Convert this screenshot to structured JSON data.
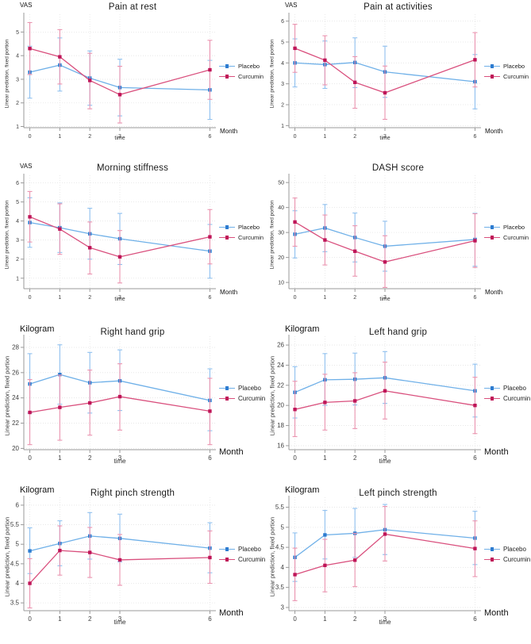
{
  "page": {
    "background": "#ffffff"
  },
  "colors": {
    "placebo_line": "#6fb0e8",
    "placebo_marker": "#2e7cd0",
    "placebo_err": "#8fc0ef",
    "curcumin_line": "#d94f7d",
    "curcumin_marker": "#bf1558",
    "curcumin_err": "#ea93af",
    "grid": "#e4e4e4",
    "axis": "#9a9a9a",
    "tick_text": "#404040"
  },
  "legend": {
    "placebo": "Placebo",
    "curcumin": "Curcumin"
  },
  "shared": {
    "ylabel": "Linear prediction, fixed portion",
    "xlabel": "time",
    "month_label": "Month"
  },
  "chart_data": [
    {
      "type": "line",
      "title": "Pain at rest",
      "unit": "VAS",
      "xlabel": "time",
      "ylabel": "Linear prediction, fixed portion",
      "x": [
        0,
        1,
        2,
        3,
        6
      ],
      "xlim": [
        -0.2,
        6.2
      ],
      "ylim": [
        0.95,
        5.55
      ],
      "yticks": [
        1,
        2,
        3,
        4,
        5
      ],
      "series": [
        {
          "name": "Placebo",
          "values": [
            3.3,
            3.6,
            3.05,
            2.65,
            2.55
          ],
          "ci_low": [
            2.2,
            2.5,
            1.9,
            1.45,
            1.3
          ],
          "ci_high": [
            4.4,
            4.75,
            4.2,
            3.85,
            3.8
          ]
        },
        {
          "name": "Curcumin",
          "values": [
            4.3,
            3.95,
            2.95,
            2.35,
            3.4
          ],
          "ci_low": [
            3.2,
            2.8,
            1.75,
            1.15,
            2.15
          ],
          "ci_high": [
            5.4,
            5.1,
            4.1,
            3.55,
            4.65
          ]
        }
      ]
    },
    {
      "type": "line",
      "title": "Pain at activities",
      "unit": "VAS",
      "xlabel": "time",
      "ylabel": "Linear prediction, fixed portion",
      "x": [
        0,
        1,
        2,
        3,
        6
      ],
      "xlim": [
        -0.2,
        6.2
      ],
      "ylim": [
        0.9,
        6.1
      ],
      "yticks": [
        1,
        2,
        3,
        4,
        5,
        6
      ],
      "series": [
        {
          "name": "Placebo",
          "values": [
            4.0,
            3.92,
            4.02,
            3.57,
            3.1
          ],
          "ci_low": [
            2.85,
            2.78,
            2.82,
            2.35,
            1.8
          ],
          "ci_high": [
            5.15,
            5.05,
            5.2,
            4.8,
            4.4
          ]
        },
        {
          "name": "Curcumin",
          "values": [
            4.7,
            4.13,
            3.07,
            2.57,
            4.15
          ],
          "ci_low": [
            3.55,
            2.95,
            1.83,
            1.3,
            2.85
          ],
          "ci_high": [
            5.85,
            5.3,
            4.3,
            3.85,
            5.45
          ]
        }
      ]
    },
    {
      "type": "line",
      "title": "Morning stiffness",
      "unit": "VAS",
      "xlabel": "time",
      "ylabel": "Linear prediction, fixed portion",
      "x": [
        0,
        1,
        2,
        3,
        6
      ],
      "xlim": [
        -0.2,
        6.2
      ],
      "ylim": [
        0.45,
        6.15
      ],
      "yticks": [
        1,
        2,
        3,
        4,
        5,
        6
      ],
      "series": [
        {
          "name": "Placebo",
          "values": [
            3.92,
            3.65,
            3.33,
            3.07,
            2.42
          ],
          "ci_low": [
            2.62,
            2.35,
            2.0,
            1.72,
            1.0
          ],
          "ci_high": [
            5.22,
            4.95,
            4.67,
            4.4,
            3.82
          ]
        },
        {
          "name": "Curcumin",
          "values": [
            4.22,
            3.58,
            2.6,
            2.12,
            3.17
          ],
          "ci_low": [
            2.9,
            2.25,
            1.22,
            0.75,
            1.75
          ],
          "ci_high": [
            5.55,
            4.9,
            3.95,
            3.5,
            4.6
          ]
        }
      ]
    },
    {
      "type": "line",
      "title": "DASH score",
      "unit": "",
      "xlabel": "time",
      "ylabel": "Linear prediction, fixed portion",
      "x": [
        0,
        1,
        2,
        3,
        6
      ],
      "xlim": [
        -0.2,
        6.2
      ],
      "ylim": [
        7.5,
        51
      ],
      "yticks": [
        10,
        20,
        30,
        40,
        50
      ],
      "series": [
        {
          "name": "Placebo",
          "values": [
            29.3,
            31.8,
            28,
            24.5,
            27.2
          ],
          "ci_low": [
            19.8,
            22.3,
            18.2,
            14.5,
            16.5
          ],
          "ci_high": [
            38.7,
            41.2,
            37.8,
            34.5,
            37.7
          ]
        },
        {
          "name": "Curcumin",
          "values": [
            34.2,
            27,
            22.5,
            18.2,
            26.7
          ],
          "ci_low": [
            24.5,
            17,
            12.5,
            8,
            16
          ],
          "ci_high": [
            43.8,
            37,
            32.7,
            28.7,
            37.5
          ]
        }
      ]
    },
    {
      "type": "line",
      "title": "Right hand grip",
      "unit": "Kilogram",
      "xlabel": "time",
      "ylabel": "Linear prediction, fixed portion",
      "x": [
        0,
        1,
        2,
        3,
        6
      ],
      "xlim": [
        -0.2,
        6.2
      ],
      "ylim": [
        19.9,
        28.5
      ],
      "yticks": [
        20,
        22,
        24,
        26,
        28
      ],
      "series": [
        {
          "name": "Placebo",
          "values": [
            25.1,
            25.85,
            25.2,
            25.35,
            23.8
          ],
          "ci_low": [
            22.8,
            23.5,
            22.8,
            23.0,
            21.4
          ],
          "ci_high": [
            27.5,
            28.2,
            27.6,
            27.8,
            26.3
          ]
        },
        {
          "name": "Curcumin",
          "values": [
            22.85,
            23.25,
            23.6,
            24.1,
            22.95
          ],
          "ci_low": [
            20.3,
            20.65,
            21.05,
            21.45,
            20.3
          ],
          "ci_high": [
            25.45,
            25.8,
            26.2,
            26.7,
            25.55
          ]
        }
      ]
    },
    {
      "type": "line",
      "title": "Left hand grip",
      "unit": "Kilogram",
      "xlabel": "time",
      "ylabel": "Linear prediction, fixed portion",
      "x": [
        0,
        1,
        2,
        3,
        6
      ],
      "xlim": [
        -0.2,
        6.2
      ],
      "ylim": [
        15.6,
        26.4
      ],
      "yticks": [
        16,
        18,
        20,
        22,
        24,
        26
      ],
      "series": [
        {
          "name": "Placebo",
          "values": [
            21.3,
            22.55,
            22.6,
            22.75,
            21.45
          ],
          "ci_low": [
            18.75,
            20.0,
            20.05,
            20.2,
            18.85
          ],
          "ci_high": [
            23.85,
            25.15,
            25.2,
            25.35,
            24.1
          ]
        },
        {
          "name": "Curcumin",
          "values": [
            19.6,
            20.3,
            20.45,
            21.45,
            20.0
          ],
          "ci_low": [
            16.9,
            17.55,
            17.7,
            18.65,
            17.2
          ],
          "ci_high": [
            22.4,
            23.1,
            23.25,
            24.3,
            22.8
          ]
        }
      ]
    },
    {
      "type": "line",
      "title": "Right pinch strength",
      "unit": "Kilogram",
      "xlabel": "time",
      "ylabel": "Linear prediction, fixed portion",
      "x": [
        0,
        1,
        2,
        3,
        6
      ],
      "xlim": [
        -0.2,
        6.2
      ],
      "ylim": [
        3.3,
        6.08
      ],
      "yticks": [
        3.5,
        4,
        4.5,
        5,
        5.5,
        6
      ],
      "series": [
        {
          "name": "Placebo",
          "values": [
            4.83,
            5.02,
            5.21,
            5.15,
            4.9
          ],
          "ci_low": [
            4.25,
            4.45,
            4.62,
            4.55,
            4.27
          ],
          "ci_high": [
            5.42,
            5.6,
            5.81,
            5.77,
            5.55
          ]
        },
        {
          "name": "Curcumin",
          "values": [
            4.0,
            4.84,
            4.79,
            4.6,
            4.66
          ],
          "ci_low": [
            3.37,
            4.21,
            4.15,
            3.95,
            4.0
          ],
          "ci_high": [
            4.63,
            5.47,
            5.43,
            5.25,
            5.34
          ]
        }
      ]
    },
    {
      "type": "line",
      "title": "Left pinch strength",
      "unit": "Kilogram",
      "xlabel": "time",
      "ylabel": "Linear prediction, fixed portion",
      "x": [
        0,
        1,
        2,
        3,
        6
      ],
      "xlim": [
        -0.2,
        6.2
      ],
      "ylim": [
        2.92,
        5.63
      ],
      "yticks": [
        3,
        3.5,
        4,
        4.5,
        5,
        5.5
      ],
      "series": [
        {
          "name": "Placebo",
          "values": [
            4.25,
            4.81,
            4.85,
            4.94,
            4.73
          ],
          "ci_low": [
            3.65,
            4.21,
            4.25,
            4.32,
            4.07
          ],
          "ci_high": [
            4.86,
            5.42,
            5.47,
            5.57,
            5.4
          ]
        },
        {
          "name": "Curcumin",
          "values": [
            3.82,
            4.05,
            4.18,
            4.83,
            4.47
          ],
          "ci_low": [
            3.17,
            3.39,
            3.52,
            4.16,
            3.77
          ],
          "ci_high": [
            4.48,
            4.7,
            4.85,
            5.52,
            5.16
          ]
        }
      ]
    }
  ]
}
